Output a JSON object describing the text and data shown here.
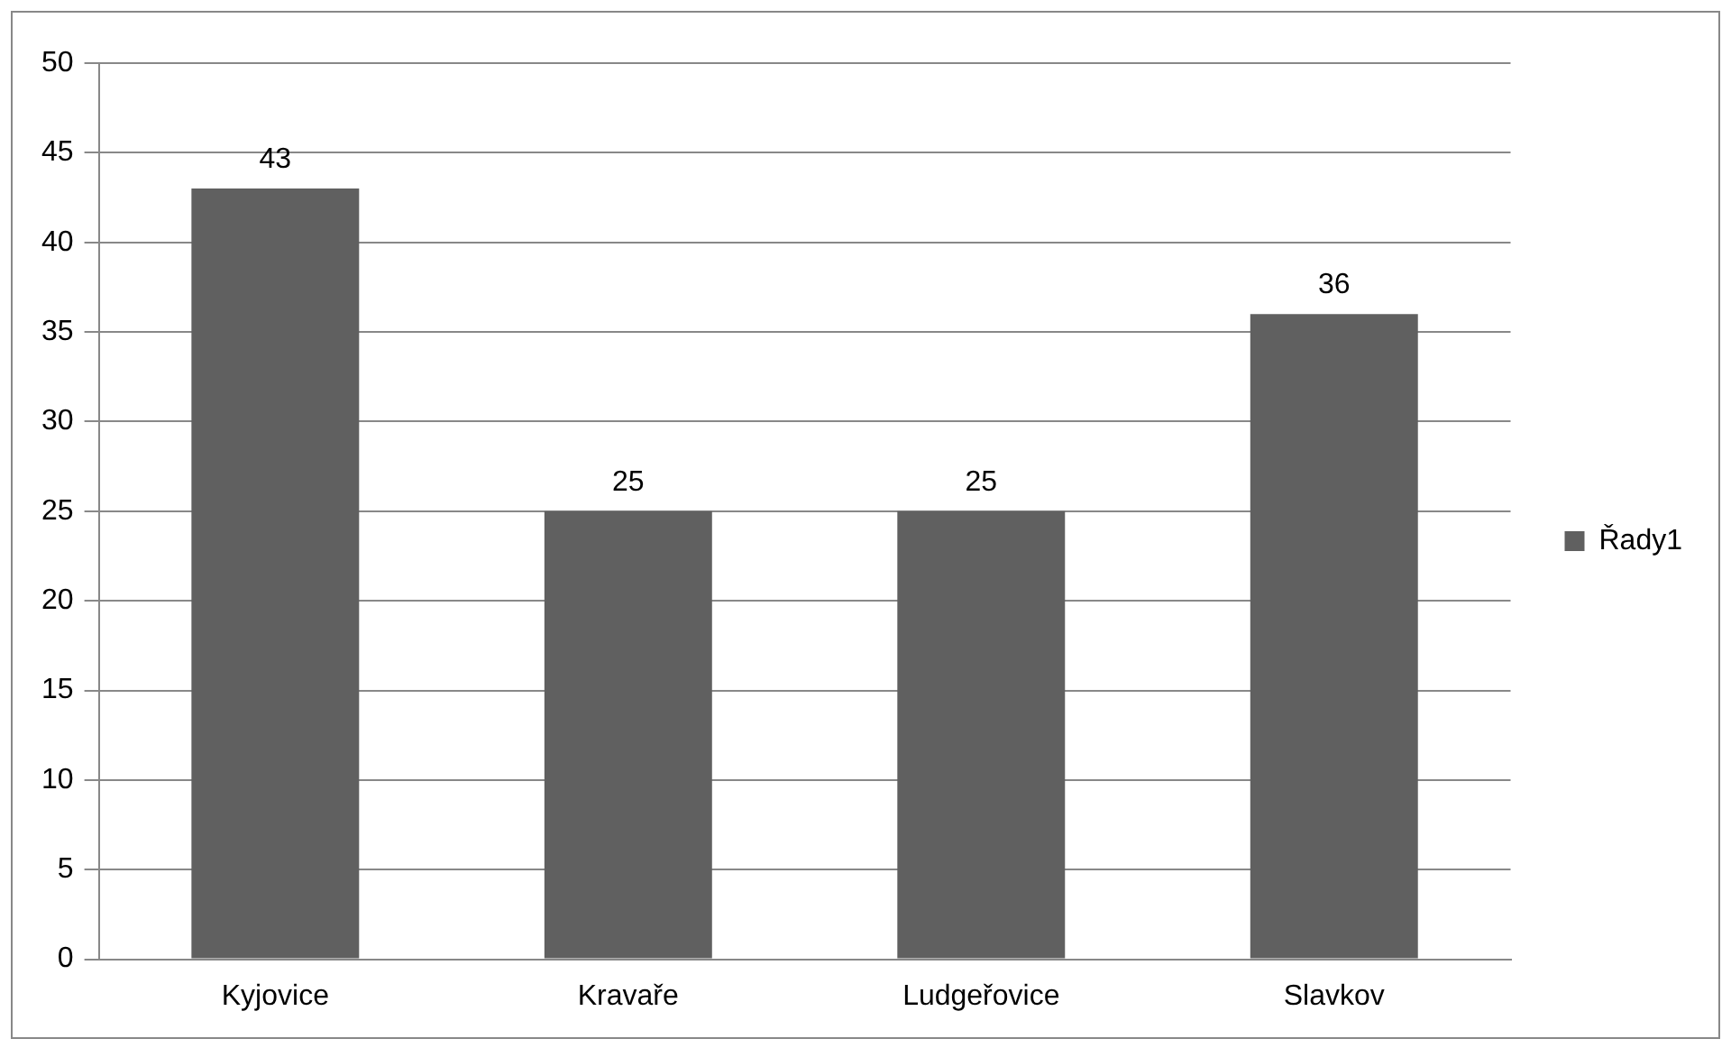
{
  "chart_data": {
    "type": "bar",
    "categories": [
      "Kyjovice",
      "Kravaře",
      "Ludgeřovice",
      "Slavkov"
    ],
    "series": [
      {
        "name": "Řady1",
        "color": "#606060",
        "values": [
          43,
          25,
          25,
          36
        ]
      }
    ],
    "ylim": [
      0,
      50
    ],
    "yticks": [
      0,
      5,
      10,
      15,
      20,
      25,
      30,
      35,
      40,
      45,
      50
    ],
    "grid": "y",
    "legend": "right",
    "data_labels": true
  }
}
